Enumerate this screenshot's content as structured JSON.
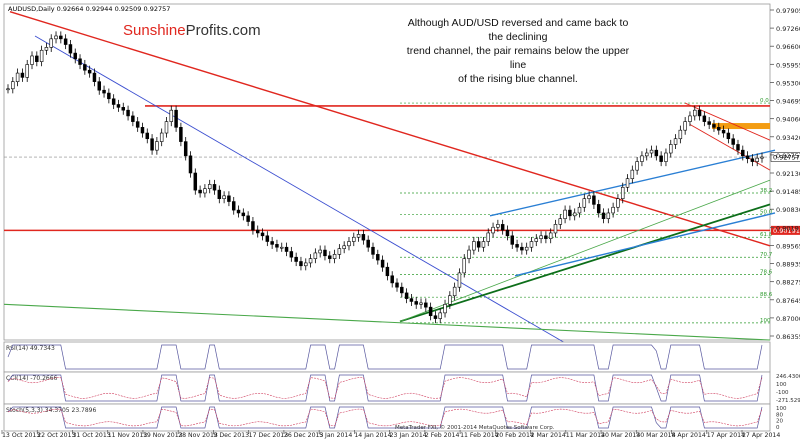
{
  "window": {
    "title": "AUDUSD,Daily",
    "ohlc": "0.92664 0.92944 0.92509 0.92757"
  },
  "brand": {
    "part1": "Sunshine",
    "part2": "Profits.com"
  },
  "annotation": {
    "line1": "Although AUD/USD reversed and came back to the declining",
    "line2": "trend channel, the pair remains below the upper line",
    "line3": "of the rising blue channel."
  },
  "footer": {
    "copyright": "MetaTrader FXI, © 2001-2014 MetaQuotes Software Corp."
  },
  "colors": {
    "candle": "#000000",
    "resistance_red": "#e0271f",
    "blue_channel": "#2a7fd4",
    "thin_blue": "#3c4fd0",
    "green_trend": "#0d6e1a",
    "light_green": "#4aa84a",
    "fib_green": "#2d9a2d",
    "orange_zone": "#f39c12",
    "indicator_line": "#5a5aa0",
    "indicator_signal": "#d04060"
  },
  "chart_data": {
    "type": "candlestick",
    "symbol": "AUDUSD",
    "timeframe": "Daily",
    "y_range": [
      0.8635,
      0.9812
    ],
    "price_ticks": [
      "0.97905",
      "0.97260",
      "0.96600",
      "0.95955",
      "0.95300",
      "0.94695",
      "0.94060",
      "0.93420",
      "0.92757",
      "0.92130",
      "0.91485",
      "0.90830",
      "0.90191",
      "0.89565",
      "0.88935",
      "0.88275",
      "0.87645",
      "0.87000",
      "0.86355"
    ],
    "current_price_label": "0.92757",
    "level_label": "0.90191",
    "x_labels": [
      "13 Oct 2013",
      "22 Oct 2013",
      "31 Oct 2013",
      "11 Nov 2013",
      "19 Nov 2013",
      "28 Nov 2013",
      "9 Dec 2013",
      "17 Dec 2013",
      "26 Dec 2013",
      "5 Jan 2014",
      "14 Jan 2014",
      "23 Jan 2014",
      "2 Feb 2014",
      "11 Feb 2014",
      "20 Feb 2014",
      "2 Mar 2014",
      "11 Mar 2014",
      "20 Mar 2014",
      "30 Mar 2014",
      "8 Apr 2014",
      "17 Apr 2014",
      "27 Apr 2014"
    ],
    "closes": [
      0.9515,
      0.954,
      0.957,
      0.9555,
      0.96,
      0.963,
      0.961,
      0.965,
      0.966,
      0.969,
      0.97,
      0.969,
      0.967,
      0.964,
      0.962,
      0.96,
      0.958,
      0.957,
      0.954,
      0.951,
      0.95,
      0.948,
      0.946,
      0.945,
      0.944,
      0.942,
      0.94,
      0.938,
      0.936,
      0.934,
      0.93,
      0.933,
      0.936,
      0.94,
      0.944,
      0.938,
      0.933,
      0.928,
      0.922,
      0.916,
      0.915,
      0.9165,
      0.918,
      0.916,
      0.913,
      0.914,
      0.912,
      0.909,
      0.908,
      0.907,
      0.905,
      0.902,
      0.901,
      0.9,
      0.898,
      0.897,
      0.896,
      0.896,
      0.8945,
      0.8925,
      0.891,
      0.8895,
      0.8905,
      0.892,
      0.894,
      0.895,
      0.893,
      0.892,
      0.8935,
      0.8955,
      0.8965,
      0.898,
      0.8995,
      0.9005,
      0.8985,
      0.896,
      0.8935,
      0.8915,
      0.889,
      0.886,
      0.8835,
      0.882,
      0.88,
      0.878,
      0.877,
      0.876,
      0.8765,
      0.875,
      0.872,
      0.871,
      0.873,
      0.876,
      0.879,
      0.882,
      0.887,
      0.892,
      0.895,
      0.898,
      0.896,
      0.898,
      0.901,
      0.903,
      0.904,
      0.902,
      0.9,
      0.897,
      0.896,
      0.895,
      0.896,
      0.898,
      0.899,
      0.9,
      0.899,
      0.901,
      0.904,
      0.906,
      0.909,
      0.907,
      0.908,
      0.91,
      0.913,
      0.914,
      0.911,
      0.908,
      0.906,
      0.908,
      0.91,
      0.913,
      0.917,
      0.92,
      0.923,
      0.926,
      0.928,
      0.929,
      0.93,
      0.928,
      0.926,
      0.929,
      0.932,
      0.934,
      0.937,
      0.94,
      0.942,
      0.944,
      0.942,
      0.94,
      0.939,
      0.938,
      0.937,
      0.936,
      0.934,
      0.932,
      0.93,
      0.928,
      0.927,
      0.926,
      0.9272,
      0.9276
    ],
    "horizontal_levels": [
      {
        "price": 0.9455,
        "kind": "resistance"
      },
      {
        "price": 0.9019,
        "kind": "support"
      },
      {
        "price": 0.9276,
        "kind": "current"
      }
    ],
    "resistance_zone": [
      0.9375,
      0.9395
    ],
    "fib_levels": [
      {
        "label": "0.0",
        "price": 0.9465
      },
      {
        "label": "38.2",
        "price": 0.915
      },
      {
        "label": "50.0",
        "price": 0.9074
      },
      {
        "label": "61.8",
        "price": 0.8995
      },
      {
        "label": "70.7",
        "price": 0.8925
      },
      {
        "label": "78.6",
        "price": 0.8864
      },
      {
        "label": "88.6",
        "price": 0.8785
      },
      {
        "label": "100",
        "price": 0.8695
      }
    ],
    "indicators": [
      {
        "name": "RSI(14)",
        "value": "49.7343"
      },
      {
        "name": "CCI(14)",
        "value": "-70.2666",
        "levels": [
          "246.4306",
          "100",
          "-100",
          "-271.5294"
        ]
      },
      {
        "name": "Stoch(5,3,3)",
        "value": "34.3705 23.7896",
        "levels": [
          "100",
          "80",
          "20",
          "0"
        ]
      }
    ]
  }
}
